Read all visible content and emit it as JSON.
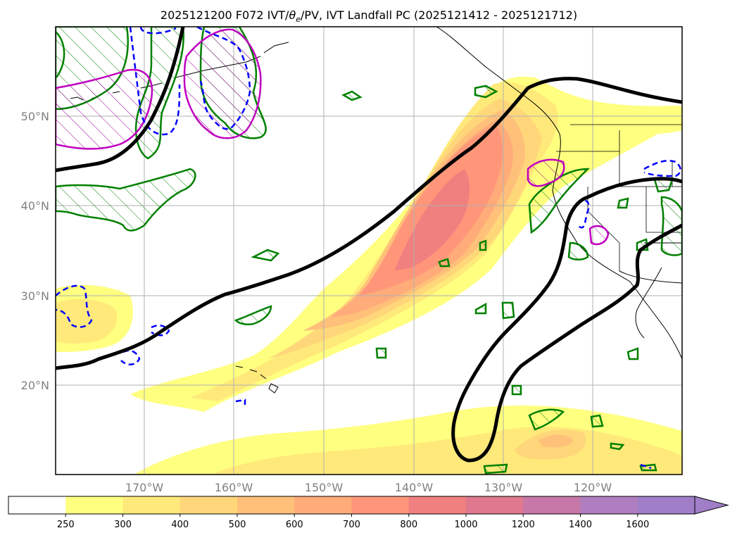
{
  "map": {
    "title": "2025121200 F072 IVT/θe/PV, IVT Landfall PC (2025121412 - 2025121712)",
    "title_prefix": "2025121200 F072 IVT/",
    "title_theta": "θ",
    "title_theta_sub": "e",
    "title_suffix": "/PV, IVT Landfall PC (2025121412 - 2025121712)",
    "lat_labels": [
      "50°N",
      "40°N",
      "30°N",
      "20°N"
    ],
    "lon_labels": [
      "170°W",
      "160°W",
      "150°W",
      "140°W",
      "130°W",
      "120°W"
    ],
    "colors": {
      "gridline": "#b0b0b0",
      "plume_250": "#ffff80",
      "plume_300": "#ffe97a",
      "plume_400": "#ffd77a",
      "plume_500": "#ffc07a",
      "plume_600": "#ffab7a",
      "plume_700": "#ff967a",
      "plume_800": "#f0807f",
      "theta_contour": "#000000",
      "pv_green": "#008000",
      "pv_blue": "#0000ff",
      "pv_magenta": "#c000c0"
    }
  },
  "colorbar": {
    "ticks": [
      "250",
      "300",
      "400",
      "500",
      "600",
      "700",
      "800",
      "1000",
      "1200",
      "1400",
      "1600"
    ],
    "colors": [
      "#ffffff",
      "#ffff80",
      "#ffe97a",
      "#ffd77a",
      "#ffc07a",
      "#ffab7a",
      "#ff967a",
      "#f0807f",
      "#e07890",
      "#c878a8",
      "#b07ec0",
      "#a07ec8"
    ]
  }
}
